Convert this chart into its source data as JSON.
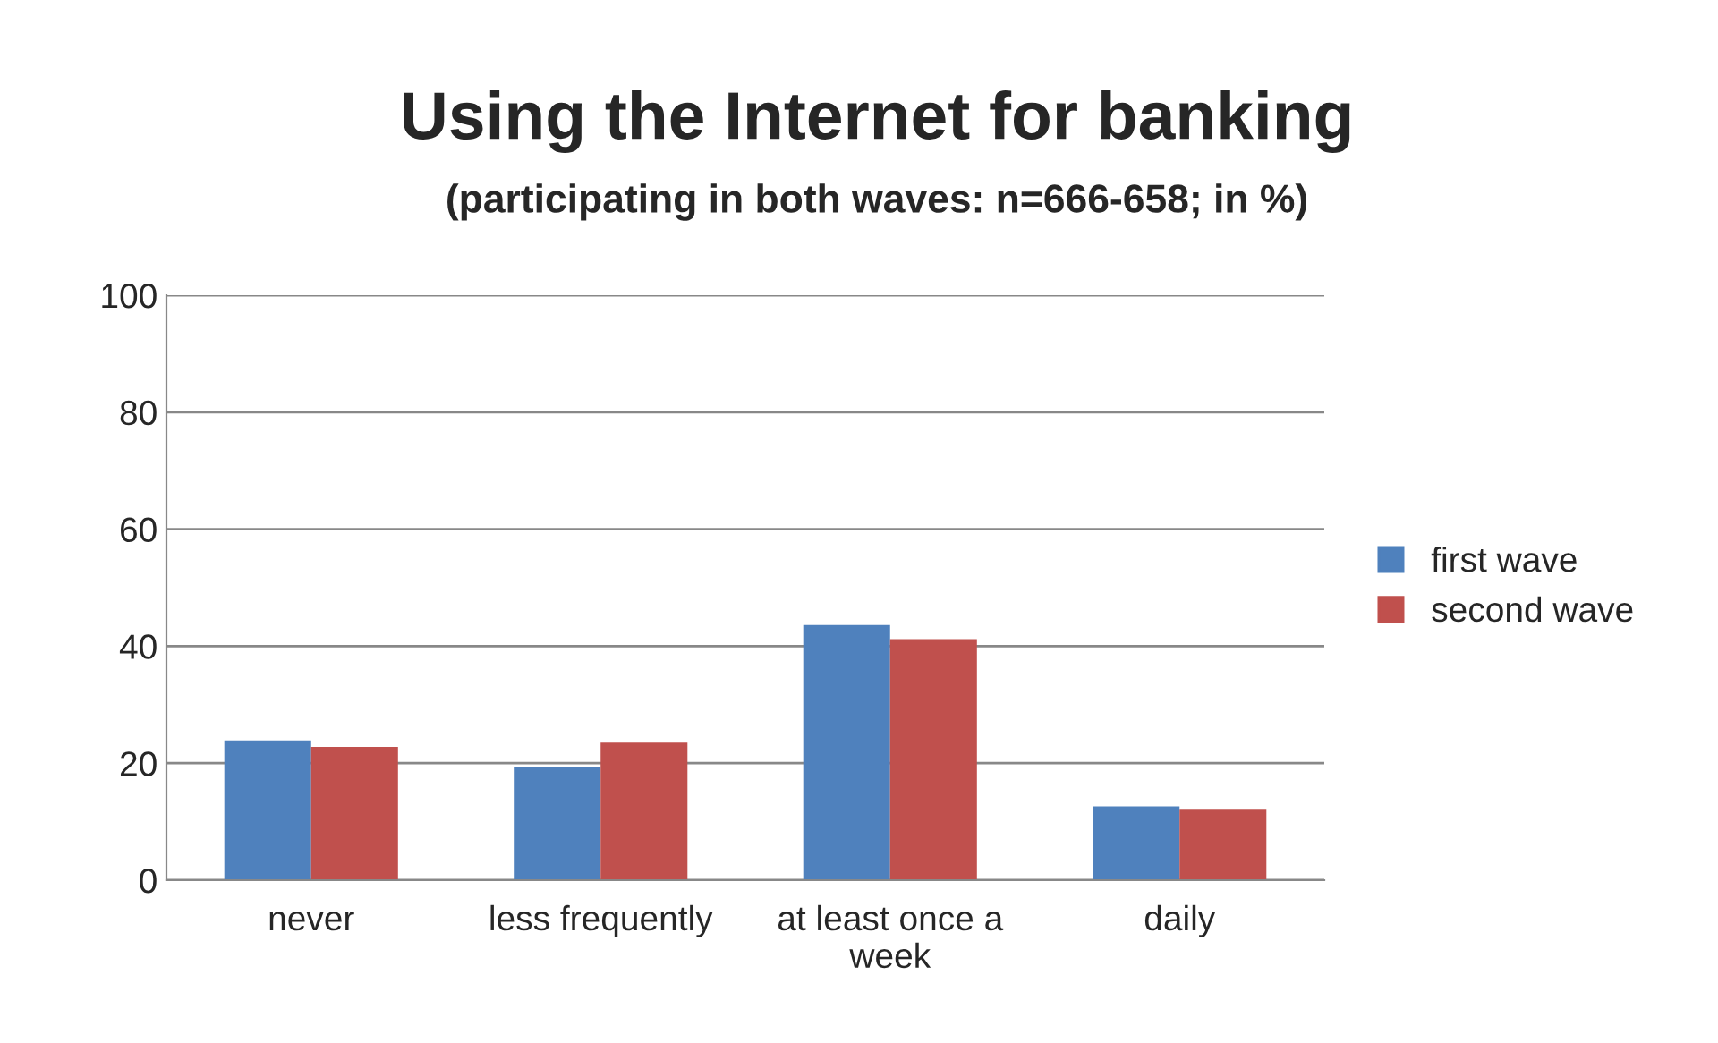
{
  "chart_data": {
    "type": "bar",
    "title": "Using the Internet for banking",
    "subtitle": "(participating in both waves: n=666-658; in %)",
    "categories": [
      "never",
      "less frequently",
      "at least once a week",
      "daily"
    ],
    "series": [
      {
        "name": "first wave",
        "color": "#4f81bd",
        "values": [
          23.9,
          19.3,
          43.6,
          12.6
        ]
      },
      {
        "name": "second wave",
        "color": "#c0504d",
        "values": [
          22.8,
          23.5,
          41.2,
          12.2
        ]
      }
    ],
    "ylim": [
      0,
      100
    ],
    "yticks": [
      0,
      20,
      40,
      60,
      80,
      100
    ],
    "grid": "y",
    "legend": "right"
  }
}
